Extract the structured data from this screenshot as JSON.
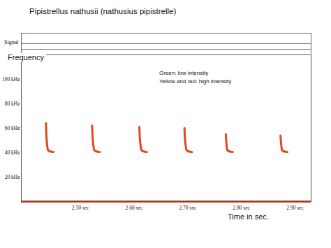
{
  "chart_data": {
    "type": "line",
    "title": "Pipistrellus nathusii (nathusius pipistrelle)",
    "signal_label": "Signal",
    "y_label": "Frequency",
    "x_label": "Time in sec.",
    "annotations": [
      "Green: low intensity",
      "Yellow and red: high intensity"
    ],
    "color": "#e4471b",
    "xlim": [
      2.39,
      2.93
    ],
    "ylim": [
      0,
      120
    ],
    "xticks": [
      {
        "value": 2.5,
        "label": "2.50 sec"
      },
      {
        "value": 2.6,
        "label": "2.60 sec"
      },
      {
        "value": 2.7,
        "label": "2.70 sec"
      },
      {
        "value": 2.8,
        "label": "2.80 sec"
      },
      {
        "value": 2.9,
        "label": "2.90 sec"
      }
    ],
    "yticks": [
      {
        "value": 20,
        "label": "20 kHz"
      },
      {
        "value": 40,
        "label": "40 kHz"
      },
      {
        "value": 60,
        "label": "60 kHz"
      },
      {
        "value": 80,
        "label": "80 kHz"
      },
      {
        "value": 100,
        "label": "100 kHz"
      }
    ],
    "series": [
      {
        "x": [
          2.436,
          2.437,
          2.4385,
          2.44,
          2.444,
          2.45
        ],
        "values": [
          64,
          52,
          45,
          42,
          41,
          40.5
        ]
      },
      {
        "x": [
          2.522,
          2.523,
          2.5245,
          2.526,
          2.53,
          2.536
        ],
        "values": [
          62,
          52,
          45,
          42,
          41,
          40.5
        ]
      },
      {
        "x": [
          2.61,
          2.611,
          2.6125,
          2.614,
          2.618,
          2.624
        ],
        "values": [
          61,
          51,
          45,
          42,
          41,
          40.5
        ]
      },
      {
        "x": [
          2.694,
          2.695,
          2.6965,
          2.698,
          2.702,
          2.708
        ],
        "values": [
          60,
          51,
          45,
          42,
          41,
          40.5
        ]
      },
      {
        "x": [
          2.771,
          2.772,
          2.773,
          2.774,
          2.778,
          2.784
        ],
        "values": [
          55,
          49,
          44,
          42,
          41,
          40.5
        ]
      },
      {
        "x": [
          2.873,
          2.874,
          2.875,
          2.876,
          2.88,
          2.886
        ],
        "values": [
          54,
          48,
          44,
          42,
          41,
          40.5
        ]
      }
    ]
  }
}
